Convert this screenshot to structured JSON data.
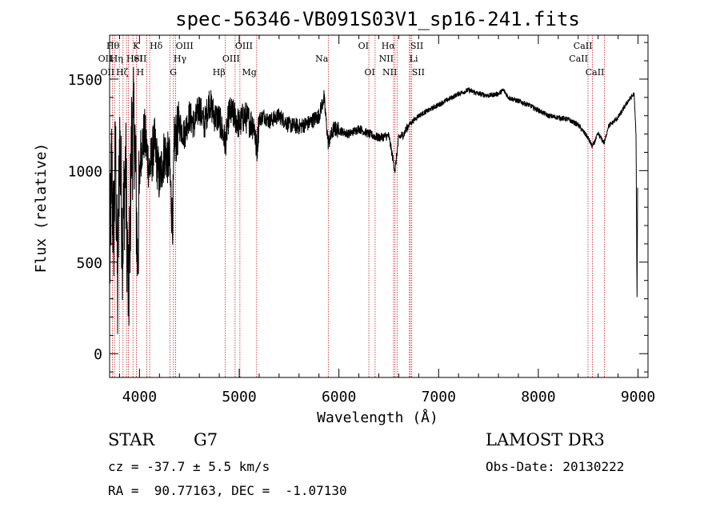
{
  "chart_data": {
    "type": "line",
    "title": "spec-56346-VB091S03V1_sp16-241.fits",
    "xlabel": "Wavelength (Å)",
    "ylabel": "Flux (relative)",
    "xlim": [
      3700,
      9100
    ],
    "ylim": [
      -130,
      1740
    ],
    "xticks": [
      4000,
      5000,
      6000,
      7000,
      8000,
      9000
    ],
    "xtick_labels": [
      "4000",
      "5000",
      "6000",
      "7000",
      "8000",
      "9000"
    ],
    "yticks": [
      0,
      500,
      1000,
      1500
    ],
    "ytick_labels": [
      "0",
      "500",
      "1000",
      "1500"
    ],
    "spectrum_anchors": [
      [
        3700,
        400
      ],
      [
        3720,
        1000
      ],
      [
        3740,
        650
      ],
      [
        3760,
        1100
      ],
      [
        3780,
        300
      ],
      [
        3800,
        1200
      ],
      [
        3830,
        600
      ],
      [
        3860,
        1050
      ],
      [
        3890,
        250
      ],
      [
        3920,
        1150
      ],
      [
        3950,
        1250
      ],
      [
        3980,
        500
      ],
      [
        4010,
        1100
      ],
      [
        4050,
        1200
      ],
      [
        4100,
        1000
      ],
      [
        4150,
        1150
      ],
      [
        4200,
        950
      ],
      [
        4250,
        1100
      ],
      [
        4300,
        1050
      ],
      [
        4330,
        700
      ],
      [
        4350,
        1150
      ],
      [
        4400,
        1250
      ],
      [
        4450,
        1200
      ],
      [
        4500,
        1300
      ],
      [
        4550,
        1250
      ],
      [
        4600,
        1350
      ],
      [
        4650,
        1250
      ],
      [
        4700,
        1380
      ],
      [
        4750,
        1300
      ],
      [
        4800,
        1280
      ],
      [
        4861,
        1150
      ],
      [
        4900,
        1320
      ],
      [
        4950,
        1300
      ],
      [
        5000,
        1250
      ],
      [
        5050,
        1300
      ],
      [
        5100,
        1270
      ],
      [
        5150,
        1250
      ],
      [
        5175,
        1100
      ],
      [
        5200,
        1280
      ],
      [
        5250,
        1300
      ],
      [
        5300,
        1270
      ],
      [
        5400,
        1300
      ],
      [
        5500,
        1250
      ],
      [
        5600,
        1240
      ],
      [
        5700,
        1260
      ],
      [
        5800,
        1300
      ],
      [
        5850,
        1400
      ],
      [
        5893,
        1150
      ],
      [
        5950,
        1230
      ],
      [
        6000,
        1220
      ],
      [
        6100,
        1200
      ],
      [
        6200,
        1230
      ],
      [
        6300,
        1200
      ],
      [
        6400,
        1180
      ],
      [
        6500,
        1190
      ],
      [
        6563,
        1000
      ],
      [
        6600,
        1180
      ],
      [
        6650,
        1200
      ],
      [
        6700,
        1250
      ],
      [
        6800,
        1300
      ],
      [
        6900,
        1330
      ],
      [
        7000,
        1360
      ],
      [
        7100,
        1390
      ],
      [
        7200,
        1420
      ],
      [
        7300,
        1440
      ],
      [
        7400,
        1420
      ],
      [
        7500,
        1410
      ],
      [
        7600,
        1420
      ],
      [
        7650,
        1440
      ],
      [
        7700,
        1400
      ],
      [
        7800,
        1380
      ],
      [
        7900,
        1360
      ],
      [
        8000,
        1330
      ],
      [
        8100,
        1300
      ],
      [
        8200,
        1290
      ],
      [
        8300,
        1280
      ],
      [
        8400,
        1250
      ],
      [
        8498,
        1180
      ],
      [
        8542,
        1130
      ],
      [
        8600,
        1200
      ],
      [
        8662,
        1150
      ],
      [
        8700,
        1240
      ],
      [
        8800,
        1290
      ],
      [
        8900,
        1380
      ],
      [
        8960,
        1420
      ],
      [
        8980,
        1200
      ],
      [
        8990,
        300
      ],
      [
        9000,
        1300
      ]
    ],
    "emission_lines": [
      {
        "wl": 3727,
        "label": "OII",
        "row": 2,
        "side": "left"
      },
      {
        "wl": 3750,
        "label": "OII",
        "row": 3,
        "side": "left"
      },
      {
        "wl": 3798,
        "label": "Hθ",
        "row": 1,
        "side": "left"
      },
      {
        "wl": 3835,
        "label": "Hη",
        "row": 2,
        "side": "left"
      },
      {
        "wl": 3869,
        "label": "HeI",
        "row": 2,
        "side": "right"
      },
      {
        "wl": 3889,
        "label": "Hζ",
        "row": 3,
        "side": "left"
      },
      {
        "wl": 3934,
        "label": "K",
        "row": 1,
        "side": "right"
      },
      {
        "wl": 3969,
        "label": "H",
        "row": 3,
        "side": "right"
      },
      {
        "wl": 4072,
        "label": "SII",
        "row": 2,
        "side": "left"
      },
      {
        "wl": 4102,
        "label": "Hδ",
        "row": 1,
        "side": "right"
      },
      {
        "wl": 4304,
        "label": "G",
        "row": 3,
        "side": "right"
      },
      {
        "wl": 4341,
        "label": "Hγ",
        "row": 2,
        "side": "right"
      },
      {
        "wl": 4363,
        "label": "OIII",
        "row": 1,
        "side": "right"
      },
      {
        "wl": 4861,
        "label": "Hβ",
        "row": 3,
        "side": "left"
      },
      {
        "wl": 4959,
        "label": "OIII",
        "row": 1,
        "side": "right"
      },
      {
        "wl": 5007,
        "label": "OIII",
        "row": 2,
        "side": "left"
      },
      {
        "wl": 5175,
        "label": "Mg",
        "row": 3,
        "side": "left"
      },
      {
        "wl": 5893,
        "label": "Na",
        "row": 2,
        "side": "left"
      },
      {
        "wl": 6300,
        "label": "OI",
        "row": 1,
        "side": "left"
      },
      {
        "wl": 6363,
        "label": "OI",
        "row": 3,
        "side": "left"
      },
      {
        "wl": 6548,
        "label": "NII",
        "row": 2,
        "side": "left"
      },
      {
        "wl": 6563,
        "label": "Hα",
        "row": 1,
        "side": "left"
      },
      {
        "wl": 6583,
        "label": "NII",
        "row": 3,
        "side": "left"
      },
      {
        "wl": 6707,
        "label": "Li",
        "row": 2,
        "side": "right"
      },
      {
        "wl": 6717,
        "label": "SII",
        "row": 1,
        "side": "right"
      },
      {
        "wl": 6731,
        "label": "SII",
        "row": 3,
        "side": "right"
      },
      {
        "wl": 8498,
        "label": "CaII",
        "row": 2,
        "side": "left"
      },
      {
        "wl": 8542,
        "label": "CaII",
        "row": 1,
        "side": "left"
      },
      {
        "wl": 8662,
        "label": "CaII",
        "row": 3,
        "side": "left"
      }
    ],
    "colors": {
      "spectrum": "#000000",
      "lines": "#c00000",
      "axes": "#000000"
    }
  },
  "info": {
    "class": "STAR",
    "subclass": "G7",
    "survey": "LAMOST DR3",
    "cz": "cz = -37.7 ± 5.5 km/s",
    "obs_date": "Obs-Date: 20130222",
    "coords": "RA =  90.77163, DEC =  -1.07130"
  }
}
